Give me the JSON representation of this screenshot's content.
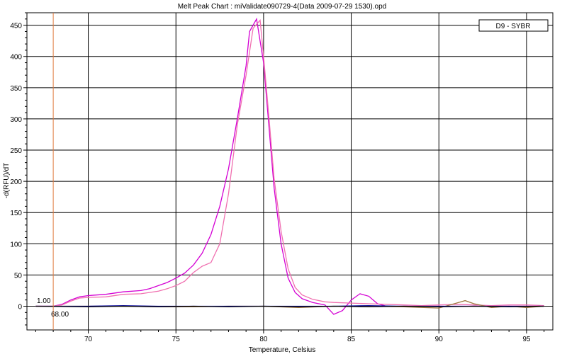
{
  "chart_data": {
    "type": "line",
    "title": "Melt Peak Chart : miValidate090729-4(Data 2009-07-29 1530).opd",
    "xlabel": "Temperature, Celsius",
    "ylabel": "-d(RFU)/dT",
    "xlim": [
      66.5,
      96.5
    ],
    "ylim": [
      -38,
      470
    ],
    "x_ticks": [
      70,
      75,
      80,
      85,
      90,
      95
    ],
    "y_ticks": [
      0,
      50,
      100,
      150,
      200,
      250,
      300,
      350,
      400,
      450
    ],
    "grid": true,
    "legend": {
      "position": "top-right",
      "text": "D9 - SYBR"
    },
    "cursor": {
      "x": 68.0,
      "x_label": "68.00",
      "y_label": "1.00",
      "color": "#e07a3c"
    },
    "series": [
      {
        "color": "#d400d4",
        "points": [
          [
            67,
            0
          ],
          [
            68,
            0
          ],
          [
            68.5,
            3
          ],
          [
            69,
            10
          ],
          [
            69.5,
            15
          ],
          [
            70,
            17
          ],
          [
            71,
            19
          ],
          [
            72,
            23
          ],
          [
            73,
            25
          ],
          [
            73.5,
            28
          ],
          [
            74,
            33
          ],
          [
            74.5,
            38
          ],
          [
            75,
            45
          ],
          [
            75.5,
            53
          ],
          [
            76,
            66
          ],
          [
            76.5,
            85
          ],
          [
            77,
            115
          ],
          [
            77.5,
            160
          ],
          [
            78,
            220
          ],
          [
            78.5,
            300
          ],
          [
            79,
            385
          ],
          [
            79.2,
            440
          ],
          [
            79.6,
            460
          ],
          [
            80,
            390
          ],
          [
            80.3,
            290
          ],
          [
            80.6,
            190
          ],
          [
            81,
            100
          ],
          [
            81.4,
            45
          ],
          [
            81.8,
            22
          ],
          [
            82.2,
            12
          ],
          [
            82.8,
            6
          ],
          [
            83.5,
            2
          ],
          [
            84,
            -13
          ],
          [
            84.5,
            -7
          ],
          [
            85,
            10
          ],
          [
            85.5,
            20
          ],
          [
            86,
            16
          ],
          [
            86.5,
            4
          ],
          [
            87,
            0
          ],
          [
            88,
            0
          ],
          [
            89,
            0
          ],
          [
            90,
            0
          ],
          [
            91,
            0
          ],
          [
            92,
            0
          ],
          [
            93,
            0
          ],
          [
            94,
            0
          ],
          [
            95,
            0
          ],
          [
            96,
            0
          ]
        ]
      },
      {
        "color": "#f070b0",
        "points": [
          [
            67,
            0
          ],
          [
            68,
            0
          ],
          [
            68.5,
            2
          ],
          [
            69,
            8
          ],
          [
            69.5,
            13
          ],
          [
            70,
            14
          ],
          [
            71,
            15
          ],
          [
            72,
            19
          ],
          [
            73,
            20
          ],
          [
            74,
            24
          ],
          [
            74.5,
            28
          ],
          [
            75,
            33
          ],
          [
            75.5,
            40
          ],
          [
            76,
            54
          ],
          [
            76.5,
            64
          ],
          [
            77,
            70
          ],
          [
            77.5,
            100
          ],
          [
            78,
            180
          ],
          [
            78.5,
            290
          ],
          [
            79,
            370
          ],
          [
            79.4,
            445
          ],
          [
            79.8,
            458
          ],
          [
            80,
            400
          ],
          [
            80.3,
            305
          ],
          [
            80.6,
            205
          ],
          [
            81,
            120
          ],
          [
            81.4,
            60
          ],
          [
            81.8,
            30
          ],
          [
            82.2,
            18
          ],
          [
            82.8,
            11
          ],
          [
            83.5,
            7
          ],
          [
            84,
            6
          ],
          [
            85,
            5
          ],
          [
            86,
            4
          ],
          [
            87,
            3
          ],
          [
            88,
            2
          ],
          [
            89,
            1
          ],
          [
            90,
            2
          ],
          [
            91,
            3
          ],
          [
            92,
            2
          ],
          [
            93,
            1
          ],
          [
            94,
            2
          ],
          [
            95,
            2
          ],
          [
            96,
            1
          ]
        ]
      },
      {
        "color": "#a07840",
        "points": [
          [
            67,
            0
          ],
          [
            70,
            0
          ],
          [
            72,
            0
          ],
          [
            74,
            -1
          ],
          [
            76,
            -1
          ],
          [
            78,
            0
          ],
          [
            80,
            0
          ],
          [
            82,
            -2
          ],
          [
            84,
            0
          ],
          [
            86,
            0
          ],
          [
            88,
            -1
          ],
          [
            90,
            -3
          ],
          [
            91,
            5
          ],
          [
            91.5,
            9
          ],
          [
            92,
            4
          ],
          [
            93,
            -2
          ],
          [
            94,
            0
          ],
          [
            95,
            -2
          ],
          [
            96,
            0
          ]
        ]
      },
      {
        "color": "#1a1aa0",
        "points": [
          [
            67,
            0
          ],
          [
            70,
            0
          ],
          [
            72,
            1
          ],
          [
            74,
            0
          ],
          [
            76,
            0
          ],
          [
            78,
            0
          ],
          [
            80,
            0
          ],
          [
            82,
            0
          ],
          [
            84,
            0
          ],
          [
            86,
            1
          ],
          [
            88,
            0
          ],
          [
            90,
            0
          ],
          [
            92,
            0
          ],
          [
            94,
            0
          ],
          [
            96,
            0
          ]
        ]
      },
      {
        "color": "#000000",
        "points": [
          [
            67,
            0
          ],
          [
            70,
            -1
          ],
          [
            72,
            0
          ],
          [
            74,
            -1
          ],
          [
            76,
            0
          ],
          [
            78,
            -1
          ],
          [
            80,
            0
          ],
          [
            82,
            -1
          ],
          [
            84,
            0
          ],
          [
            86,
            -1
          ],
          [
            88,
            0
          ],
          [
            90,
            -1
          ],
          [
            92,
            0
          ],
          [
            94,
            -1
          ],
          [
            96,
            0
          ]
        ]
      }
    ]
  }
}
